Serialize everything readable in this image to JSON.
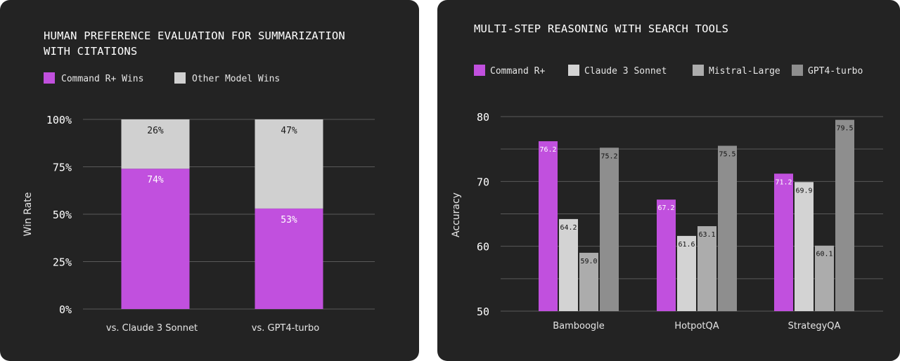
{
  "chart_data": [
    {
      "type": "bar",
      "stacked": true,
      "title_lines": [
        "HUMAN PREFERENCE EVALUATION FOR SUMMARIZATION",
        "WITH CITATIONS"
      ],
      "ylabel": "Win Rate",
      "ylim": [
        0,
        100
      ],
      "yticks": [
        "0%",
        "25%",
        "50%",
        "75%",
        "100%"
      ],
      "ytick_values": [
        0,
        25,
        50,
        75,
        100
      ],
      "categories": [
        "vs. Claude 3 Sonnet",
        "vs. GPT4-turbo"
      ],
      "series": [
        {
          "name": "Command R+ Wins",
          "values": [
            74,
            53
          ],
          "labels": [
            "74%",
            "53%"
          ],
          "color": "#c150de",
          "label_color": "#ffffff"
        },
        {
          "name": "Other Model Wins",
          "values": [
            26,
            47
          ],
          "labels": [
            "26%",
            "47%"
          ],
          "color": "#d0d0d0",
          "label_color": "#1a1a1a"
        }
      ],
      "grid": true,
      "legend": "top-left"
    },
    {
      "type": "bar",
      "title": "MULTI-STEP REASONING WITH SEARCH TOOLS",
      "ylabel": "Accuracy",
      "ylim": [
        50,
        80
      ],
      "yticks": [
        "50",
        "60",
        "70",
        "80"
      ],
      "ytick_values": [
        50,
        60,
        70,
        80
      ],
      "categories": [
        "Bamboogle",
        "HotpotQA",
        "StrategyQA"
      ],
      "series": [
        {
          "name": "Command R+",
          "values": [
            76.2,
            67.2,
            71.2
          ],
          "labels": [
            "76.2",
            "67.2",
            "71.2"
          ],
          "color": "#c150de"
        },
        {
          "name": "Claude 3 Sonnet",
          "values": [
            64.2,
            61.6,
            69.9
          ],
          "labels": [
            "64.2",
            "61.6",
            "69.9"
          ],
          "color": "#d3d3d3"
        },
        {
          "name": "Mistral-Large",
          "values": [
            59.0,
            63.1,
            60.1
          ],
          "labels": [
            "59.0",
            "63.1",
            "60.1"
          ],
          "color": "#acacac"
        },
        {
          "name": "GPT4-turbo",
          "values": [
            75.2,
            75.5,
            79.5
          ],
          "labels": [
            "75.2",
            "75.5",
            "79.5"
          ],
          "color": "#8e8e8e"
        }
      ],
      "grid": true,
      "legend": "top"
    }
  ]
}
